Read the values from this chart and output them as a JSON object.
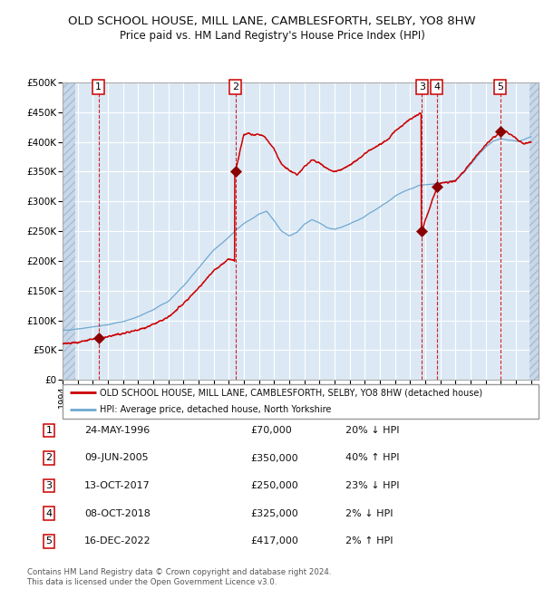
{
  "title": "OLD SCHOOL HOUSE, MILL LANE, CAMBLESFORTH, SELBY, YO8 8HW",
  "subtitle": "Price paid vs. HM Land Registry's House Price Index (HPI)",
  "xlim": [
    1994.0,
    2025.5
  ],
  "ylim": [
    0,
    500000
  ],
  "yticks": [
    0,
    50000,
    100000,
    150000,
    200000,
    250000,
    300000,
    350000,
    400000,
    450000,
    500000
  ],
  "ytick_labels": [
    "£0",
    "£50K",
    "£100K",
    "£150K",
    "£200K",
    "£250K",
    "£300K",
    "£350K",
    "£400K",
    "£450K",
    "£500K"
  ],
  "xtick_years": [
    1994,
    1995,
    1996,
    1997,
    1998,
    1999,
    2000,
    2001,
    2002,
    2003,
    2004,
    2005,
    2006,
    2007,
    2008,
    2009,
    2010,
    2011,
    2012,
    2013,
    2014,
    2015,
    2016,
    2017,
    2018,
    2019,
    2020,
    2021,
    2022,
    2023,
    2024,
    2025
  ],
  "bg_color": "#dce9f5",
  "grid_color": "#ffffff",
  "red_line_color": "#cc0000",
  "blue_line_color": "#6fa8d0",
  "transactions": [
    {
      "num": 1,
      "year": 1996.38,
      "price": 70000
    },
    {
      "num": 2,
      "year": 2005.44,
      "price": 350000
    },
    {
      "num": 3,
      "year": 2017.78,
      "price": 250000
    },
    {
      "num": 4,
      "year": 2018.77,
      "price": 325000
    },
    {
      "num": 5,
      "year": 2022.96,
      "price": 417000
    }
  ],
  "table_rows": [
    {
      "num": 1,
      "date": "24-MAY-1996",
      "price": "£70,000",
      "hpi": "20% ↓ HPI"
    },
    {
      "num": 2,
      "date": "09-JUN-2005",
      "price": "£350,000",
      "hpi": "40% ↑ HPI"
    },
    {
      "num": 3,
      "date": "13-OCT-2017",
      "price": "£250,000",
      "hpi": "23% ↓ HPI"
    },
    {
      "num": 4,
      "date": "08-OCT-2018",
      "price": "£325,000",
      "hpi": "2% ↓ HPI"
    },
    {
      "num": 5,
      "date": "16-DEC-2022",
      "price": "£417,000",
      "hpi": "2% ↑ HPI"
    }
  ],
  "legend_line1": "OLD SCHOOL HOUSE, MILL LANE, CAMBLESFORTH, SELBY, YO8 8HW (detached house)",
  "legend_line2": "HPI: Average price, detached house, North Yorkshire",
  "footer": "Contains HM Land Registry data © Crown copyright and database right 2024.\nThis data is licensed under the Open Government Licence v3.0.",
  "hpi_anchors": [
    [
      1994.0,
      83000
    ],
    [
      1995.0,
      86000
    ],
    [
      1996.0,
      89000
    ],
    [
      1997.0,
      93000
    ],
    [
      1998.0,
      98000
    ],
    [
      1999.0,
      106000
    ],
    [
      2000.0,
      118000
    ],
    [
      2001.0,
      132000
    ],
    [
      2002.0,
      158000
    ],
    [
      2003.0,
      188000
    ],
    [
      2004.0,
      218000
    ],
    [
      2005.0,
      240000
    ],
    [
      2005.5,
      252000
    ],
    [
      2006.0,
      263000
    ],
    [
      2007.0,
      278000
    ],
    [
      2007.5,
      284000
    ],
    [
      2008.0,
      268000
    ],
    [
      2008.5,
      250000
    ],
    [
      2009.0,
      242000
    ],
    [
      2009.5,
      248000
    ],
    [
      2010.0,
      262000
    ],
    [
      2010.5,
      270000
    ],
    [
      2011.0,
      264000
    ],
    [
      2011.5,
      256000
    ],
    [
      2012.0,
      253000
    ],
    [
      2012.5,
      257000
    ],
    [
      2013.0,
      262000
    ],
    [
      2013.5,
      268000
    ],
    [
      2014.0,
      275000
    ],
    [
      2014.5,
      283000
    ],
    [
      2015.0,
      291000
    ],
    [
      2015.5,
      299000
    ],
    [
      2016.0,
      309000
    ],
    [
      2016.5,
      316000
    ],
    [
      2017.0,
      321000
    ],
    [
      2017.5,
      326000
    ],
    [
      2018.0,
      328000
    ],
    [
      2018.5,
      329000
    ],
    [
      2019.0,
      331000
    ],
    [
      2019.5,
      333000
    ],
    [
      2020.0,
      336000
    ],
    [
      2020.5,
      347000
    ],
    [
      2021.0,
      362000
    ],
    [
      2021.5,
      377000
    ],
    [
      2022.0,
      391000
    ],
    [
      2022.5,
      401000
    ],
    [
      2023.0,
      406000
    ],
    [
      2023.5,
      403000
    ],
    [
      2024.0,
      401000
    ],
    [
      2024.5,
      404000
    ],
    [
      2025.0,
      409000
    ]
  ],
  "red_anchors": [
    [
      1994.0,
      60000
    ],
    [
      1995.0,
      63000
    ],
    [
      1996.38,
      70000
    ],
    [
      1997.0,
      73000
    ],
    [
      1998.0,
      78000
    ],
    [
      1999.0,
      84000
    ],
    [
      2000.0,
      93000
    ],
    [
      2001.0,
      105000
    ],
    [
      2002.0,
      128000
    ],
    [
      2003.0,
      155000
    ],
    [
      2004.0,
      183000
    ],
    [
      2005.0,
      203000
    ],
    [
      2005.439,
      200000
    ],
    [
      2005.441,
      350000
    ],
    [
      2006.0,
      413000
    ],
    [
      2006.3,
      415000
    ],
    [
      2006.6,
      412000
    ],
    [
      2007.0,
      413000
    ],
    [
      2007.4,
      408000
    ],
    [
      2008.0,
      388000
    ],
    [
      2008.5,
      362000
    ],
    [
      2009.0,
      352000
    ],
    [
      2009.5,
      345000
    ],
    [
      2010.0,
      358000
    ],
    [
      2010.5,
      370000
    ],
    [
      2011.0,
      365000
    ],
    [
      2011.5,
      355000
    ],
    [
      2012.0,
      350000
    ],
    [
      2012.5,
      354000
    ],
    [
      2013.0,
      361000
    ],
    [
      2013.5,
      370000
    ],
    [
      2014.0,
      380000
    ],
    [
      2014.5,
      388000
    ],
    [
      2015.0,
      396000
    ],
    [
      2015.5,
      404000
    ],
    [
      2016.0,
      418000
    ],
    [
      2016.5,
      428000
    ],
    [
      2017.0,
      438000
    ],
    [
      2017.6,
      447000
    ],
    [
      2017.779,
      447000
    ],
    [
      2017.781,
      250000
    ],
    [
      2018.0,
      268000
    ],
    [
      2018.769,
      323000
    ],
    [
      2018.771,
      325000
    ],
    [
      2018.9,
      328000
    ],
    [
      2019.0,
      330000
    ],
    [
      2019.5,
      332000
    ],
    [
      2020.0,
      335000
    ],
    [
      2020.5,
      348000
    ],
    [
      2021.0,
      364000
    ],
    [
      2021.5,
      381000
    ],
    [
      2022.0,
      395000
    ],
    [
      2022.5,
      407000
    ],
    [
      2022.959,
      416000
    ],
    [
      2022.961,
      417000
    ],
    [
      2023.0,
      420000
    ],
    [
      2023.3,
      418000
    ],
    [
      2023.6,
      413000
    ],
    [
      2024.0,
      406000
    ],
    [
      2024.3,
      400000
    ],
    [
      2024.6,
      397000
    ],
    [
      2025.0,
      400000
    ]
  ]
}
